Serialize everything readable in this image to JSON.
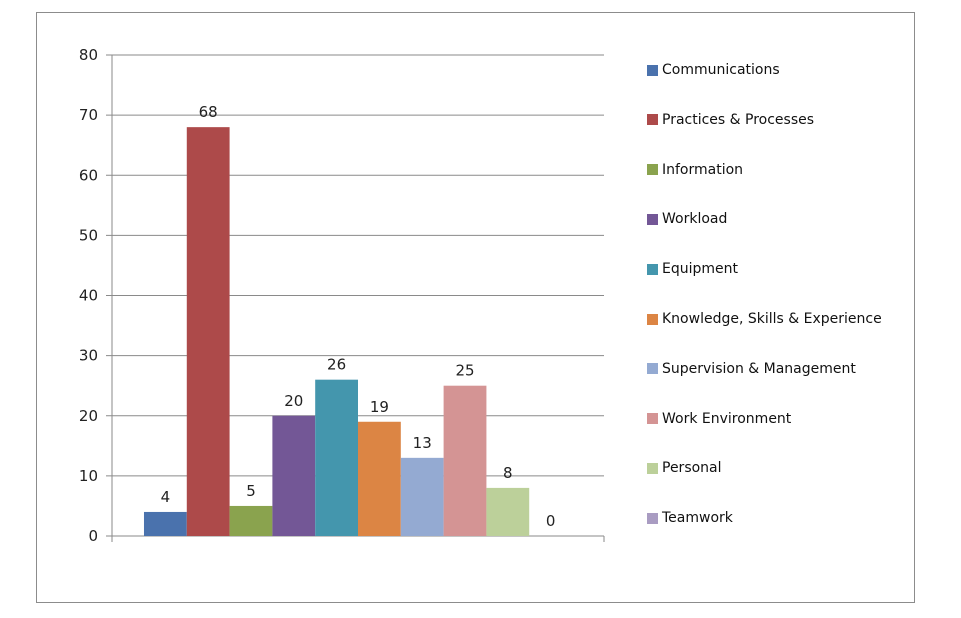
{
  "chart_data": {
    "type": "bar",
    "categories": [
      "Communications",
      "Practices & Processes",
      "Information",
      "Workload",
      "Equipment",
      "Knowledge, Skills & Experience",
      "Supervision & Management",
      "Work Environment",
      "Personal",
      "Teamwork"
    ],
    "values": [
      4,
      68,
      5,
      20,
      26,
      19,
      13,
      25,
      8,
      0
    ],
    "colors": [
      "#4a72ad",
      "#ad4a4a",
      "#8aa34e",
      "#735796",
      "#4496ad",
      "#dc8544",
      "#94aad2",
      "#d49494",
      "#bcd09a",
      "#a99cc2"
    ],
    "ylim": [
      0,
      80
    ],
    "yticks": [
      0,
      10,
      20,
      30,
      40,
      50,
      60,
      70,
      80
    ],
    "data_labels": [
      "4",
      "68",
      "5",
      "20",
      "26",
      "19",
      "13",
      "25",
      "8",
      "0"
    ],
    "grid": true,
    "legend_position": "right"
  }
}
